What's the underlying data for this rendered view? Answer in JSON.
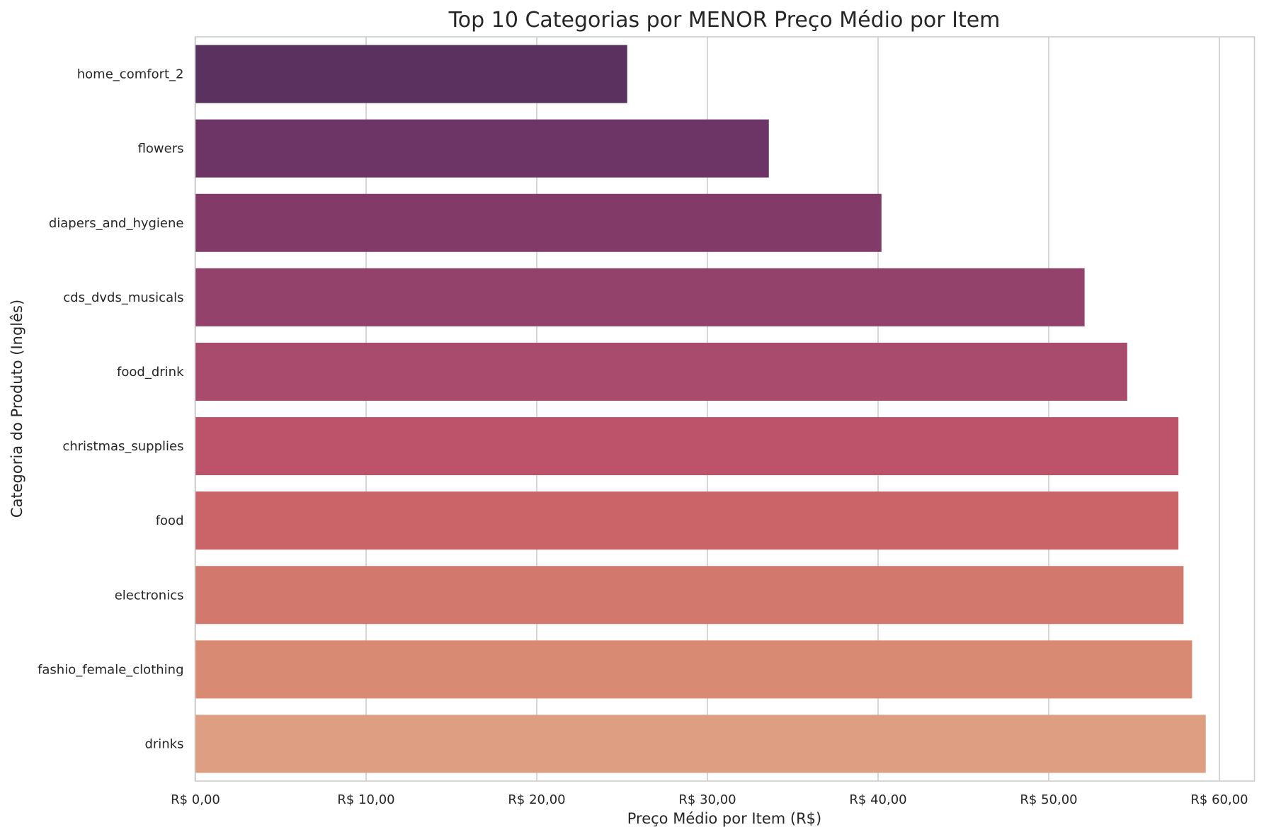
{
  "chart_data": {
    "type": "bar",
    "orientation": "horizontal",
    "title": "Top 10 Categorias por MENOR Preço Médio por Item",
    "xlabel": "Preço Médio por Item (R$)",
    "ylabel": "Categoria do Produto (Inglês)",
    "categories": [
      "home_comfort_2",
      "flowers",
      "diapers_and_hygiene",
      "cds_dvds_musicals",
      "food_drink",
      "christmas_supplies",
      "food",
      "electronics",
      "fashio_female_clothing",
      "drinks"
    ],
    "values": [
      25.3,
      33.6,
      40.2,
      52.1,
      54.6,
      57.6,
      57.6,
      57.9,
      58.4,
      59.2
    ],
    "colors": [
      "#5b3160",
      "#6c3566",
      "#823b69",
      "#93436b",
      "#a84b6c",
      "#bd536a",
      "#cb6469",
      "#d3786d",
      "#d98a73",
      "#dd9e82"
    ],
    "xlim": [
      0,
      62
    ],
    "xticks": [
      0,
      10,
      20,
      30,
      40,
      50,
      60
    ],
    "xtick_labels": [
      "R$ 0,00",
      "R$ 10,00",
      "R$ 20,00",
      "R$ 30,00",
      "R$ 40,00",
      "R$ 50,00",
      "R$ 60,00"
    ],
    "grid": "vertical",
    "legend": "none"
  }
}
